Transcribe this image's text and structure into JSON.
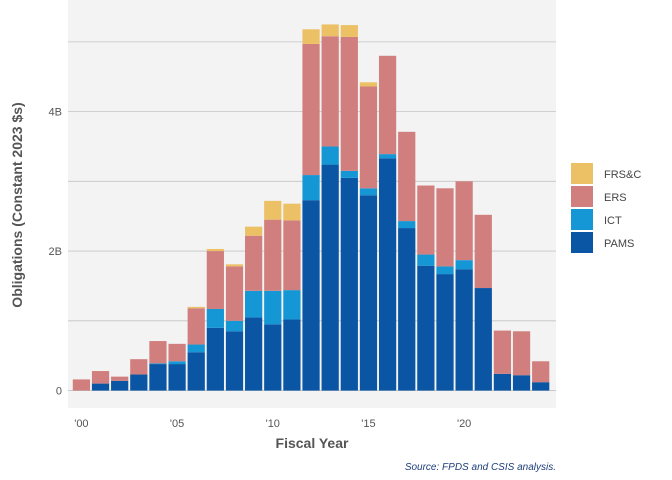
{
  "chart_data": {
    "type": "bar",
    "stacked": true,
    "xlabel": "Fiscal Year",
    "ylabel": "Obligations (Constant 2023 $s)",
    "caption": "Source: FPDS and CSIS analysis.",
    "x": [
      2000,
      2001,
      2002,
      2003,
      2004,
      2005,
      2006,
      2007,
      2008,
      2009,
      2010,
      2011,
      2012,
      2013,
      2014,
      2015,
      2016,
      2017,
      2018,
      2019,
      2020,
      2021,
      2022,
      2023,
      2024
    ],
    "x_ticks": [
      {
        "value": 2000,
        "label": "'00"
      },
      {
        "value": 2005,
        "label": "'05"
      },
      {
        "value": 2010,
        "label": "'10"
      },
      {
        "value": 2015,
        "label": "'15"
      },
      {
        "value": 2020,
        "label": "'20"
      }
    ],
    "xlim": [
      1999.3,
      2024.8
    ],
    "ylim": [
      -0.25,
      5.6
    ],
    "y_ticks": [
      {
        "value": 0,
        "label": "0"
      },
      {
        "value": 2,
        "label": "2B"
      },
      {
        "value": 4,
        "label": "4B"
      }
    ],
    "y_minor_gridlines": [
      1,
      3,
      5
    ],
    "units": "billions",
    "grid": true,
    "legend_position": "right",
    "series": [
      {
        "name": "PAMS",
        "color": "#0a55a4",
        "values": [
          0,
          0.1,
          0.14,
          0.23,
          0.38,
          0.38,
          0.55,
          0.9,
          0.85,
          1.05,
          0.95,
          1.02,
          2.73,
          3.24,
          3.05,
          2.8,
          3.33,
          2.33,
          1.79,
          1.67,
          1.74,
          1.47,
          0.24,
          0.22,
          0.12
        ]
      },
      {
        "name": "ICT",
        "color": "#1497d4",
        "values": [
          0,
          0,
          0,
          0,
          0.01,
          0.04,
          0.11,
          0.27,
          0.15,
          0.38,
          0.48,
          0.42,
          0.36,
          0.26,
          0.1,
          0.1,
          0.06,
          0.1,
          0.16,
          0.11,
          0.13,
          0,
          0,
          0,
          0
        ]
      },
      {
        "name": "ERS",
        "color": "#d17f7e",
        "values": [
          0.16,
          0.18,
          0.06,
          0.22,
          0.32,
          0.25,
          0.52,
          0.83,
          0.78,
          0.79,
          1.02,
          1.0,
          1.88,
          1.58,
          1.92,
          1.46,
          1.41,
          1.28,
          0.99,
          1.12,
          1.13,
          1.05,
          0.62,
          0.63,
          0.3
        ]
      },
      {
        "name": "FRS&C",
        "color": "#ecc065",
        "values": [
          0,
          0,
          0,
          0,
          0,
          0,
          0.02,
          0.03,
          0.03,
          0.13,
          0.27,
          0.24,
          0.21,
          0.17,
          0.17,
          0.06,
          0,
          0,
          0,
          0,
          0,
          0,
          0,
          0,
          0
        ]
      }
    ],
    "legend_order": [
      "FRS&C",
      "ERS",
      "ICT",
      "PAMS"
    ],
    "colors": {
      "panel_background": "#f3f3f3",
      "gridline": "#c4c4c4"
    }
  }
}
